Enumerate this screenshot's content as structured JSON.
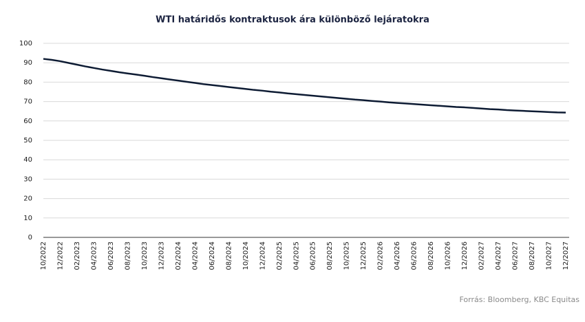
{
  "chart_data": {
    "type": "line",
    "title": "WTI határidős kontraktusok ára különböző lejáratokra",
    "source": "Forrás: Bloomberg,  KBC Equitas",
    "categories": [
      "10/2022",
      null,
      "12/2022",
      null,
      "02/2023",
      null,
      "04/2023",
      null,
      "06/2023",
      null,
      "08/2023",
      null,
      "10/2023",
      null,
      "12/2023",
      null,
      "02/2024",
      null,
      "04/2024",
      null,
      "06/2024",
      null,
      "08/2024",
      null,
      "10/2024",
      null,
      "12/2024",
      null,
      "02/2025",
      null,
      "04/2025",
      null,
      "06/2025",
      null,
      "08/2025",
      null,
      "10/2025",
      null,
      "12/2025",
      null,
      "02/2026",
      null,
      "04/2026",
      null,
      "06/2026",
      null,
      "08/2026",
      null,
      "10/2026",
      null,
      "12/2026",
      null,
      "02/2027",
      null,
      "04/2027",
      null,
      "06/2027",
      null,
      "08/2027",
      null,
      "10/2027",
      null,
      "12/2027"
    ],
    "series": [
      {
        "name": "WTI",
        "color": "#0d1b33",
        "values": [
          92,
          91.5,
          90.8,
          89.9,
          89.0,
          88.1,
          87.3,
          86.5,
          85.8,
          85.1,
          84.5,
          83.9,
          83.3,
          82.6,
          82.0,
          81.4,
          80.8,
          80.2,
          79.6,
          79.0,
          78.5,
          78.0,
          77.5,
          77.0,
          76.5,
          76.0,
          75.6,
          75.1,
          74.7,
          74.2,
          73.8,
          73.4,
          73.0,
          72.6,
          72.2,
          71.8,
          71.4,
          71.0,
          70.7,
          70.3,
          70.0,
          69.6,
          69.3,
          69.0,
          68.7,
          68.4,
          68.1,
          67.8,
          67.5,
          67.2,
          67.0,
          66.7,
          66.4,
          66.1,
          65.9,
          65.6,
          65.4,
          65.2,
          65.0,
          64.8,
          64.6,
          64.4,
          64.3
        ]
      }
    ],
    "ylim": [
      0,
      100
    ],
    "yticks": [
      0,
      10,
      20,
      30,
      40,
      50,
      60,
      70,
      80,
      90,
      100
    ],
    "grid": true
  }
}
